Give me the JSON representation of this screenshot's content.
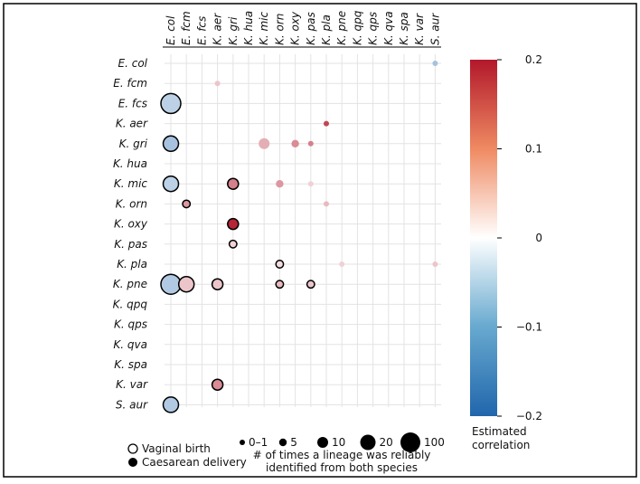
{
  "chart_data": {
    "type": "bubble-heatmap",
    "rows": [
      "E. col",
      "E. fcm",
      "E. fcs",
      "K. aer",
      "K. gri",
      "K. hua",
      "K. mic",
      "K. orn",
      "K. oxy",
      "K. pas",
      "K. pla",
      "K. pne",
      "K. qpq",
      "K. qps",
      "K. qva",
      "K. spa",
      "K. var",
      "S. aur"
    ],
    "columns": [
      "E. col",
      "E. fcm",
      "E. fcs",
      "K. aer",
      "K. gri",
      "K. hua",
      "K. mic",
      "K. orn",
      "K. oxy",
      "K. pas",
      "K. pla",
      "K. pne",
      "K. qpq",
      "K. qps",
      "K. qva",
      "K. spa",
      "K. var",
      "S. aur"
    ],
    "points": [
      {
        "row": "E. col",
        "col": "S. aur",
        "corr": -0.08,
        "count": 1,
        "birth": "vaginal"
      },
      {
        "row": "E. fcm",
        "col": "K. aer",
        "corr": 0.05,
        "count": 1,
        "birth": "vaginal"
      },
      {
        "row": "E. fcs",
        "col": "E. col",
        "corr": -0.06,
        "count": 100,
        "birth": "caesarean"
      },
      {
        "row": "K. aer",
        "col": "K. pla",
        "corr": 0.16,
        "count": 1,
        "birth": "vaginal"
      },
      {
        "row": "K. gri",
        "col": "E. col",
        "corr": -0.08,
        "count": 20,
        "birth": "caesarean"
      },
      {
        "row": "K. gri",
        "col": "K. mic",
        "corr": 0.07,
        "count": 10,
        "birth": "vaginal"
      },
      {
        "row": "K. gri",
        "col": "K. oxy",
        "corr": 0.1,
        "count": 5,
        "birth": "vaginal"
      },
      {
        "row": "K. gri",
        "col": "K. pas",
        "corr": 0.11,
        "count": 1,
        "birth": "vaginal"
      },
      {
        "row": "K. mic",
        "col": "E. col",
        "corr": -0.06,
        "count": 20,
        "birth": "caesarean"
      },
      {
        "row": "K. mic",
        "col": "K. gri",
        "corr": 0.11,
        "count": 10,
        "birth": "caesarean"
      },
      {
        "row": "K. mic",
        "col": "K. orn",
        "corr": 0.09,
        "count": 5,
        "birth": "vaginal"
      },
      {
        "row": "K. mic",
        "col": "K. pas",
        "corr": 0.04,
        "count": 1,
        "birth": "vaginal"
      },
      {
        "row": "K. orn",
        "col": "E. fcm",
        "corr": 0.09,
        "count": 5,
        "birth": "caesarean"
      },
      {
        "row": "K. orn",
        "col": "K. pla",
        "corr": 0.06,
        "count": 1,
        "birth": "vaginal"
      },
      {
        "row": "K. oxy",
        "col": "K. gri",
        "corr": 0.19,
        "count": 10,
        "birth": "caesarean"
      },
      {
        "row": "K. pas",
        "col": "K. gri",
        "corr": 0.04,
        "count": 5,
        "birth": "caesarean"
      },
      {
        "row": "K. pla",
        "col": "K. orn",
        "corr": 0.03,
        "count": 5,
        "birth": "caesarean"
      },
      {
        "row": "K. pla",
        "col": "K. pne",
        "corr": 0.04,
        "count": 1,
        "birth": "vaginal"
      },
      {
        "row": "K. pla",
        "col": "S. aur",
        "corr": 0.05,
        "count": 1,
        "birth": "vaginal"
      },
      {
        "row": "K. pne",
        "col": "E. col",
        "corr": -0.07,
        "count": 100,
        "birth": "caesarean"
      },
      {
        "row": "K. pne",
        "col": "E. fcm",
        "corr": 0.05,
        "count": 20,
        "birth": "caesarean"
      },
      {
        "row": "K. pne",
        "col": "K. aer",
        "corr": 0.05,
        "count": 10,
        "birth": "caesarean"
      },
      {
        "row": "K. pne",
        "col": "K. orn",
        "corr": 0.06,
        "count": 5,
        "birth": "caesarean"
      },
      {
        "row": "K. pne",
        "col": "K. pas",
        "corr": 0.05,
        "count": 5,
        "birth": "caesarean"
      },
      {
        "row": "K. var",
        "col": "K. aer",
        "corr": 0.1,
        "count": 10,
        "birth": "caesarean"
      },
      {
        "row": "S. aur",
        "col": "E. col",
        "corr": -0.07,
        "count": 20,
        "birth": "caesarean"
      }
    ],
    "colorbar": {
      "label_line1": "Estimated",
      "label_line2": "correlation",
      "range": [
        -0.2,
        0.2
      ],
      "ticks": [
        {
          "value": 0.2,
          "label": "0.2"
        },
        {
          "value": 0.1,
          "label": "0.1"
        },
        {
          "value": 0,
          "label": "0"
        },
        {
          "value": -0.1,
          "label": "−0.1"
        },
        {
          "value": -0.2,
          "label": "−0.2"
        }
      ],
      "low_color": "#2166ac",
      "mid_color": "#ffffff",
      "high_color": "#b2182b"
    },
    "birth_legend": {
      "vaginal": "Vaginal birth",
      "caesarean": "Caesarean delivery"
    },
    "size_legend": {
      "title_line1": "# of times a lineage was reliably",
      "title_line2": "identified from both species",
      "items": [
        {
          "label": "0–1",
          "count": 1
        },
        {
          "label": "5",
          "count": 5
        },
        {
          "label": "10",
          "count": 10
        },
        {
          "label": "20",
          "count": 20
        },
        {
          "label": "100",
          "count": 100
        }
      ]
    },
    "grid": true
  }
}
